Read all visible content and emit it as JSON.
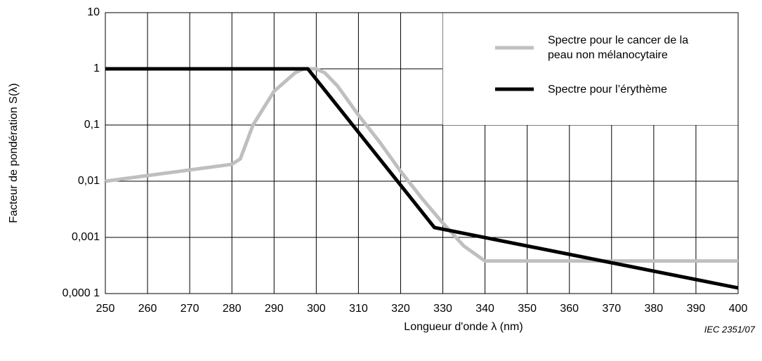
{
  "chart_data": {
    "type": "line",
    "x_label": "Longueur d'onde λ  (nm)",
    "y_label": "Facteur de pondération S(λ)",
    "note": "IEC  2351/07",
    "log_y": true,
    "grid": true,
    "legend": "upper right",
    "xlim": [
      250,
      400
    ],
    "xticks": [
      250,
      260,
      270,
      280,
      290,
      300,
      310,
      320,
      330,
      340,
      350,
      360,
      370,
      380,
      390,
      400
    ],
    "ylim": [
      0.0001,
      10
    ],
    "yticks": [
      10,
      1,
      {
        "value": 0.1,
        "label": "0,1"
      },
      {
        "value": 0.01,
        "label": "0,01"
      },
      {
        "value": 0.001,
        "label": "0,001"
      },
      {
        "value": 0.0001,
        "label": "0,000 1"
      }
    ],
    "series": [
      {
        "name": "Spectre pour le cancer de la peau non mélanocytaire",
        "color": "#bfbfbf",
        "x": [
          250,
          280,
          282,
          285,
          290,
          295,
          297,
          300,
          302,
          305,
          310,
          315,
          320,
          325,
          330,
          335,
          340,
          400
        ],
        "values": [
          0.01,
          0.02,
          0.025,
          0.1,
          0.4,
          0.85,
          1,
          1,
          0.85,
          0.5,
          0.15,
          0.05,
          0.015,
          0.005,
          0.0018,
          0.0007,
          0.00038,
          0.00038
        ]
      },
      {
        "name": "Spectre pour l’érythème",
        "color": "#000000",
        "x": [
          250,
          298,
          328,
          400
        ],
        "values": [
          1,
          1,
          0.0015,
          0.000126
        ]
      }
    ]
  }
}
